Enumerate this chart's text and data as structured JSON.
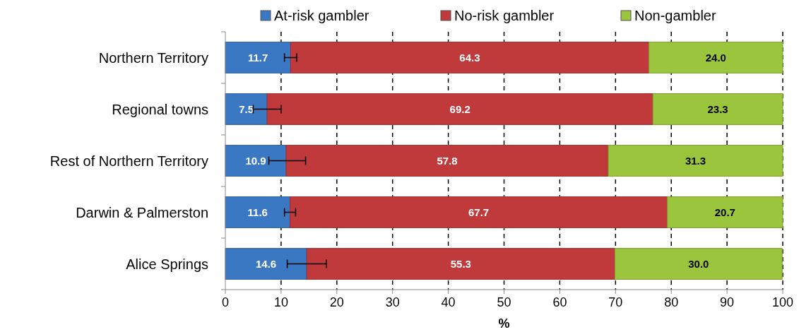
{
  "chart_data": {
    "type": "bar",
    "orientation": "horizontal",
    "stacked": true,
    "xlabel": "%",
    "categories": [
      "Northern Territory",
      "Regional towns",
      "Rest of Northern Territory",
      "Darwin & Palmerston",
      "Alice Springs"
    ],
    "series": [
      {
        "name": "At-risk gambler",
        "color": "#3a78c3",
        "values": [
          11.7,
          7.5,
          10.9,
          11.6,
          14.6
        ],
        "value_labels": [
          "11.7",
          "7.5",
          "10.9",
          "11.6",
          "14.6"
        ],
        "errors": [
          [
            10.6,
            12.8
          ],
          [
            5.0,
            10.0
          ],
          [
            7.8,
            14.4
          ],
          [
            10.6,
            12.6
          ],
          [
            11.1,
            18.1
          ]
        ]
      },
      {
        "name": "No-risk gambler",
        "color": "#c0393b",
        "values": [
          64.3,
          69.2,
          57.8,
          67.7,
          55.3
        ],
        "value_labels": [
          "64.3",
          "69.2",
          "57.8",
          "67.7",
          "55.3"
        ]
      },
      {
        "name": "Non-gambler",
        "color": "#9bc53d",
        "values": [
          24.0,
          23.3,
          31.3,
          20.7,
          30.0
        ],
        "value_labels": [
          "24.0",
          "23.3",
          "31.3",
          "20.7",
          "30.0"
        ]
      }
    ],
    "xlim": [
      0,
      100
    ],
    "xticks": [
      0,
      10,
      20,
      30,
      40,
      50,
      60,
      70,
      80,
      90,
      100
    ],
    "grid": "x",
    "legend": "top"
  }
}
